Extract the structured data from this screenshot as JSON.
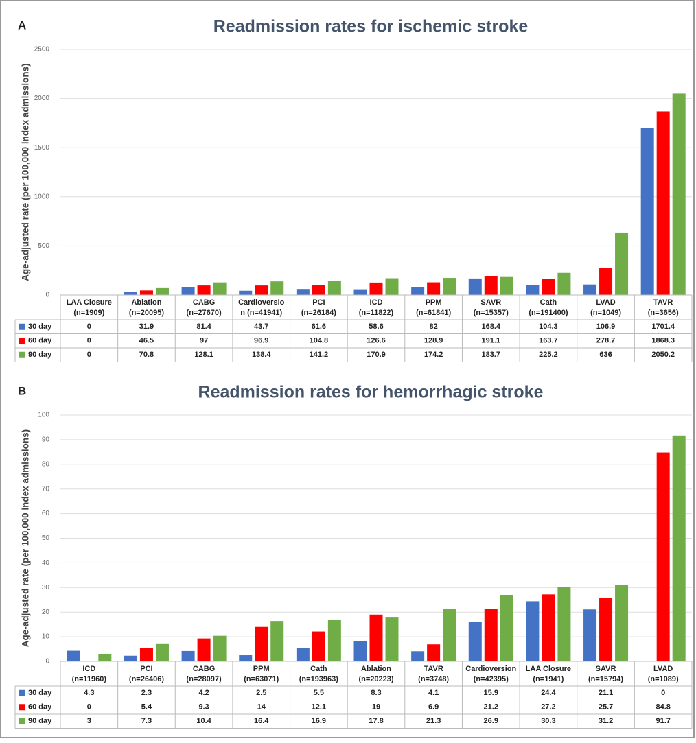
{
  "chart_data": [
    {
      "type": "bar",
      "panel_label": "A",
      "title": "Readmission rates for ischemic stroke",
      "ylabel": "Age-adjusted rate (per 100,000 index admissions)",
      "categories": [
        [
          "LAA Closure",
          "(n=1909)"
        ],
        [
          "Ablation",
          "(n=20095)"
        ],
        [
          "CABG",
          "(n=27670)"
        ],
        [
          "Cardioversio",
          "n (n=41941)"
        ],
        [
          "PCI",
          "(n=26184)"
        ],
        [
          "ICD",
          "(n=11822)"
        ],
        [
          "PPM",
          "(n=61841)"
        ],
        [
          "SAVR",
          "(n=15357)"
        ],
        [
          "Cath",
          "(n=191400)"
        ],
        [
          "LVAD",
          "(n=1049)"
        ],
        [
          "TAVR",
          "(n=3656)"
        ]
      ],
      "series": [
        {
          "name": "30 day",
          "color": "#4472c4",
          "values": [
            0,
            31.9,
            81.4,
            43.7,
            61.6,
            58.6,
            82,
            168.4,
            104.3,
            106.9,
            1701.4
          ]
        },
        {
          "name": "60 day",
          "color": "#ff0000",
          "values": [
            0,
            46.5,
            97,
            96.9,
            104.8,
            126.6,
            128.9,
            191.1,
            163.7,
            278.7,
            1868.3
          ]
        },
        {
          "name": "90 day",
          "color": "#70ad47",
          "values": [
            0,
            70.8,
            128.1,
            138.4,
            141.2,
            170.9,
            174.2,
            183.7,
            225.2,
            636,
            2050.2
          ]
        }
      ],
      "ylim": [
        0,
        2500
      ],
      "yticks": [
        0,
        500,
        1000,
        1500,
        2000,
        2500
      ],
      "grid": true
    },
    {
      "type": "bar",
      "panel_label": "B",
      "title": "Readmission rates for hemorrhagic stroke",
      "ylabel": "Age-adjusted rate (per 100,000 index admissions)",
      "categories": [
        [
          "ICD",
          "(n=11960)"
        ],
        [
          "PCI",
          "(n=26406)"
        ],
        [
          "CABG",
          "(n=28097)"
        ],
        [
          "PPM",
          "(n=63071)"
        ],
        [
          "Cath",
          "(n=193963)"
        ],
        [
          "Ablation",
          "(n=20223)"
        ],
        [
          "TAVR",
          "(n=3748)"
        ],
        [
          "Cardioversion",
          "(n=42395)"
        ],
        [
          "LAA Closure",
          "(n=1941)"
        ],
        [
          "SAVR",
          "(n=15794)"
        ],
        [
          "LVAD",
          "(n=1089)"
        ]
      ],
      "series": [
        {
          "name": "30 day",
          "color": "#4472c4",
          "values": [
            4.3,
            2.3,
            4.2,
            2.5,
            5.5,
            8.3,
            4.1,
            15.9,
            24.4,
            21.1,
            0
          ]
        },
        {
          "name": "60 day",
          "color": "#ff0000",
          "values": [
            0,
            5.4,
            9.3,
            14,
            12.1,
            19,
            6.9,
            21.2,
            27.2,
            25.7,
            84.8
          ]
        },
        {
          "name": "90 day",
          "color": "#70ad47",
          "values": [
            3,
            7.3,
            10.4,
            16.4,
            16.9,
            17.8,
            21.3,
            26.9,
            30.3,
            31.2,
            91.7
          ]
        }
      ],
      "ylim": [
        0,
        100
      ],
      "yticks": [
        0,
        10,
        20,
        30,
        40,
        50,
        60,
        70,
        80,
        90,
        100
      ],
      "grid": true
    }
  ]
}
